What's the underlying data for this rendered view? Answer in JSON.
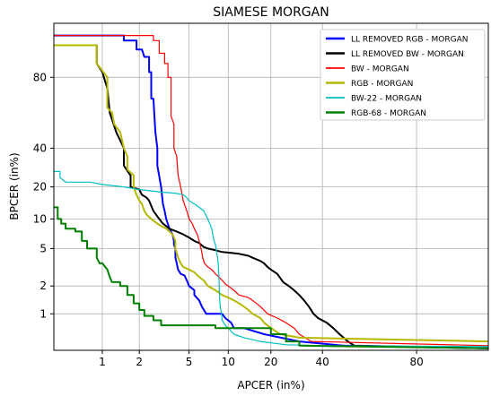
{
  "chart_data": {
    "type": "line",
    "title": "SIAMESE MORGAN",
    "xlabel": "APCER (in%)",
    "ylabel": "BPCER (in%)",
    "xscale": "logit",
    "yscale": "logit",
    "xlim": [
      0.4,
      94
    ],
    "ylim": [
      0.4,
      94
    ],
    "grid": true,
    "legend_position": "top-right",
    "x_ticks": [
      1,
      2,
      5,
      10,
      20,
      40,
      80
    ],
    "x_tick_labels": [
      "1",
      "2",
      "5",
      "10",
      "20",
      "40",
      "80"
    ],
    "y_ticks": [
      1,
      2,
      5,
      10,
      20,
      40,
      80
    ],
    "y_tick_labels": [
      "1",
      "2",
      "5",
      "10",
      "20",
      "40",
      "80"
    ],
    "series": [
      {
        "name": "LL REMOVED RGB - MORGAN",
        "color": "#0000ff",
        "width": 2,
        "points": [
          [
            0.4,
            92
          ],
          [
            1.5,
            92
          ],
          [
            1.5,
            91
          ],
          [
            1.9,
            91
          ],
          [
            1.9,
            89
          ],
          [
            2.1,
            89
          ],
          [
            2.2,
            87
          ],
          [
            2.4,
            87
          ],
          [
            2.4,
            82
          ],
          [
            2.5,
            82
          ],
          [
            2.5,
            70
          ],
          [
            2.6,
            70
          ],
          [
            2.7,
            50
          ],
          [
            2.8,
            40
          ],
          [
            2.8,
            30
          ],
          [
            3.0,
            20
          ],
          [
            3.1,
            14
          ],
          [
            3.2,
            12
          ],
          [
            3.3,
            10
          ],
          [
            3.5,
            8
          ],
          [
            3.7,
            7
          ],
          [
            3.8,
            6
          ],
          [
            3.8,
            5.5
          ],
          [
            3.9,
            5
          ],
          [
            3.9,
            4
          ],
          [
            4.0,
            3.5
          ],
          [
            4.1,
            3
          ],
          [
            4.3,
            2.7
          ],
          [
            4.6,
            2.6
          ],
          [
            4.8,
            2.3
          ],
          [
            5.0,
            2.0
          ],
          [
            5.5,
            1.8
          ],
          [
            5.5,
            1.6
          ],
          [
            6.0,
            1.4
          ],
          [
            6.3,
            1.2
          ],
          [
            6.8,
            1.0
          ],
          [
            7.0,
            1.0
          ],
          [
            9.0,
            1.0
          ],
          [
            9.5,
            0.9
          ],
          [
            10.5,
            0.8
          ],
          [
            11,
            0.7
          ],
          [
            13,
            0.7
          ],
          [
            18,
            0.6
          ],
          [
            30,
            0.5
          ],
          [
            50,
            0.45
          ],
          [
            94,
            0.42
          ]
        ]
      },
      {
        "name": "LL REMOVED BW - MORGAN",
        "color": "#000000",
        "width": 2,
        "points": [
          [
            0.4,
            90
          ],
          [
            0.9,
            90
          ],
          [
            0.9,
            85
          ],
          [
            1.0,
            82
          ],
          [
            1.1,
            75
          ],
          [
            1.15,
            62
          ],
          [
            1.3,
            50
          ],
          [
            1.5,
            40
          ],
          [
            1.5,
            30
          ],
          [
            1.7,
            25
          ],
          [
            1.7,
            20
          ],
          [
            2.0,
            19
          ],
          [
            2.1,
            17
          ],
          [
            2.3,
            16
          ],
          [
            2.4,
            15
          ],
          [
            2.6,
            12
          ],
          [
            2.9,
            10
          ],
          [
            3.1,
            9
          ],
          [
            3.5,
            8
          ],
          [
            4.0,
            7.5
          ],
          [
            4.5,
            7
          ],
          [
            5.0,
            6.5
          ],
          [
            5.5,
            6
          ],
          [
            6.0,
            5.7
          ],
          [
            6.5,
            5.2
          ],
          [
            7.0,
            5
          ],
          [
            8.0,
            4.8
          ],
          [
            9.0,
            4.6
          ],
          [
            10.5,
            4.5
          ],
          [
            12,
            4.4
          ],
          [
            14,
            4.2
          ],
          [
            15,
            4.0
          ],
          [
            17,
            3.7
          ],
          [
            18,
            3.5
          ],
          [
            19,
            3.2
          ],
          [
            20,
            3.0
          ],
          [
            22,
            2.7
          ],
          [
            24,
            2.2
          ],
          [
            26,
            2.0
          ],
          [
            28,
            1.8
          ],
          [
            30,
            1.6
          ],
          [
            32,
            1.4
          ],
          [
            34,
            1.2
          ],
          [
            36,
            1.0
          ],
          [
            38,
            0.9
          ],
          [
            42,
            0.8
          ],
          [
            45,
            0.7
          ],
          [
            48,
            0.6
          ],
          [
            52,
            0.5
          ],
          [
            55,
            0.45
          ],
          [
            94,
            0.42
          ]
        ]
      },
      {
        "name": "BW - MORGAN",
        "color": "#ff0000",
        "width": 1.2,
        "points": [
          [
            0.4,
            92
          ],
          [
            2.6,
            92
          ],
          [
            2.6,
            91
          ],
          [
            2.9,
            91
          ],
          [
            2.9,
            88
          ],
          [
            3.2,
            88
          ],
          [
            3.2,
            85
          ],
          [
            3.4,
            85
          ],
          [
            3.4,
            80
          ],
          [
            3.6,
            80
          ],
          [
            3.6,
            60
          ],
          [
            3.8,
            55
          ],
          [
            3.8,
            40
          ],
          [
            4.0,
            35
          ],
          [
            4.1,
            25
          ],
          [
            4.3,
            20
          ],
          [
            4.5,
            15
          ],
          [
            4.8,
            12
          ],
          [
            5.0,
            10
          ],
          [
            5.3,
            9
          ],
          [
            5.5,
            8
          ],
          [
            5.8,
            7
          ],
          [
            6.0,
            6
          ],
          [
            6.2,
            5
          ],
          [
            6.3,
            4.5
          ],
          [
            6.4,
            4
          ],
          [
            6.6,
            3.5
          ],
          [
            7.0,
            3.2
          ],
          [
            7.5,
            3
          ],
          [
            8.0,
            2.7
          ],
          [
            8.5,
            2.5
          ],
          [
            9.0,
            2.3
          ],
          [
            9.5,
            2.1
          ],
          [
            10,
            2.0
          ],
          [
            11,
            1.8
          ],
          [
            12,
            1.6
          ],
          [
            14,
            1.5
          ],
          [
            15,
            1.4
          ],
          [
            17,
            1.2
          ],
          [
            19,
            1.0
          ],
          [
            22,
            0.9
          ],
          [
            25,
            0.8
          ],
          [
            28,
            0.7
          ],
          [
            30,
            0.6
          ],
          [
            35,
            0.5
          ],
          [
            94,
            0.45
          ]
        ]
      },
      {
        "name": "RGB - MORGAN",
        "color": "#b5b800",
        "width": 2,
        "points": [
          [
            0.4,
            90
          ],
          [
            0.9,
            90
          ],
          [
            0.9,
            85
          ],
          [
            1.1,
            80
          ],
          [
            1.1,
            65
          ],
          [
            1.2,
            62
          ],
          [
            1.25,
            55
          ],
          [
            1.4,
            50
          ],
          [
            1.5,
            40
          ],
          [
            1.6,
            35
          ],
          [
            1.6,
            28
          ],
          [
            1.8,
            25
          ],
          [
            1.8,
            20
          ],
          [
            1.9,
            17
          ],
          [
            2.0,
            15
          ],
          [
            2.1,
            14
          ],
          [
            2.2,
            12
          ],
          [
            2.3,
            11
          ],
          [
            2.5,
            10
          ],
          [
            2.8,
            9
          ],
          [
            3.0,
            8.5
          ],
          [
            3.3,
            8
          ],
          [
            3.5,
            7.5
          ],
          [
            3.7,
            7
          ],
          [
            3.9,
            6
          ],
          [
            3.9,
            5
          ],
          [
            4.0,
            4.5
          ],
          [
            4.1,
            4
          ],
          [
            4.3,
            3.5
          ],
          [
            4.5,
            3.2
          ],
          [
            5.0,
            3.0
          ],
          [
            5.5,
            2.8
          ],
          [
            6.0,
            2.5
          ],
          [
            6.5,
            2.3
          ],
          [
            7.0,
            2.0
          ],
          [
            8.0,
            1.8
          ],
          [
            9.0,
            1.6
          ],
          [
            10,
            1.5
          ],
          [
            11,
            1.4
          ],
          [
            12,
            1.3
          ],
          [
            13,
            1.2
          ],
          [
            14,
            1.1
          ],
          [
            15,
            1.0
          ],
          [
            17,
            0.9
          ],
          [
            18,
            0.8
          ],
          [
            20,
            0.7
          ],
          [
            23,
            0.6
          ],
          [
            30,
            0.55
          ],
          [
            94,
            0.5
          ]
        ]
      },
      {
        "name": "BW-22 - MORGAN",
        "color": "#00bfc4",
        "width": 1.2,
        "points": [
          [
            0.4,
            27
          ],
          [
            0.45,
            27
          ],
          [
            0.45,
            24
          ],
          [
            0.5,
            22
          ],
          [
            0.8,
            22
          ],
          [
            1.0,
            21
          ],
          [
            1.5,
            20
          ],
          [
            2.0,
            19
          ],
          [
            3.0,
            18
          ],
          [
            4.0,
            17.5
          ],
          [
            4.5,
            17
          ],
          [
            4.8,
            16
          ],
          [
            5.0,
            15
          ],
          [
            5.5,
            14
          ],
          [
            6.0,
            13
          ],
          [
            6.5,
            12
          ],
          [
            7.0,
            10
          ],
          [
            7.5,
            8
          ],
          [
            7.8,
            6
          ],
          [
            8.0,
            5.5
          ],
          [
            8.2,
            4.5
          ],
          [
            8.4,
            3.5
          ],
          [
            8.5,
            2.5
          ],
          [
            8.6,
            1.5
          ],
          [
            8.7,
            1.2
          ],
          [
            8.9,
            1.0
          ],
          [
            9.0,
            0.85
          ],
          [
            9.5,
            0.75
          ],
          [
            10,
            0.7
          ],
          [
            11,
            0.6
          ],
          [
            13,
            0.55
          ],
          [
            17,
            0.5
          ],
          [
            25,
            0.46
          ],
          [
            40,
            0.45
          ],
          [
            94,
            0.44
          ]
        ]
      },
      {
        "name": "RGB-68 - MORGAN",
        "color": "#008000",
        "width": 2,
        "points": [
          [
            0.4,
            13
          ],
          [
            0.43,
            13
          ],
          [
            0.43,
            10
          ],
          [
            0.46,
            10
          ],
          [
            0.46,
            9
          ],
          [
            0.5,
            9
          ],
          [
            0.5,
            8
          ],
          [
            0.6,
            8
          ],
          [
            0.6,
            7.5
          ],
          [
            0.68,
            7.5
          ],
          [
            0.68,
            6
          ],
          [
            0.75,
            6
          ],
          [
            0.75,
            5
          ],
          [
            0.9,
            5
          ],
          [
            0.9,
            4
          ],
          [
            0.95,
            3.5
          ],
          [
            1.0,
            3.5
          ],
          [
            1.1,
            3.0
          ],
          [
            1.15,
            2.5
          ],
          [
            1.2,
            2.2
          ],
          [
            1.4,
            2.2
          ],
          [
            1.4,
            2.0
          ],
          [
            1.6,
            2.0
          ],
          [
            1.6,
            1.6
          ],
          [
            1.8,
            1.6
          ],
          [
            1.8,
            1.3
          ],
          [
            2.0,
            1.3
          ],
          [
            2.0,
            1.1
          ],
          [
            2.2,
            1.1
          ],
          [
            2.2,
            0.95
          ],
          [
            2.6,
            0.95
          ],
          [
            2.6,
            0.85
          ],
          [
            3.0,
            0.85
          ],
          [
            3.0,
            0.75
          ],
          [
            5.0,
            0.75
          ],
          [
            8.0,
            0.75
          ],
          [
            8.0,
            0.7
          ],
          [
            20,
            0.7
          ],
          [
            20,
            0.6
          ],
          [
            25,
            0.6
          ],
          [
            25,
            0.5
          ],
          [
            30,
            0.5
          ],
          [
            30,
            0.45
          ],
          [
            94,
            0.42
          ]
        ]
      }
    ]
  }
}
